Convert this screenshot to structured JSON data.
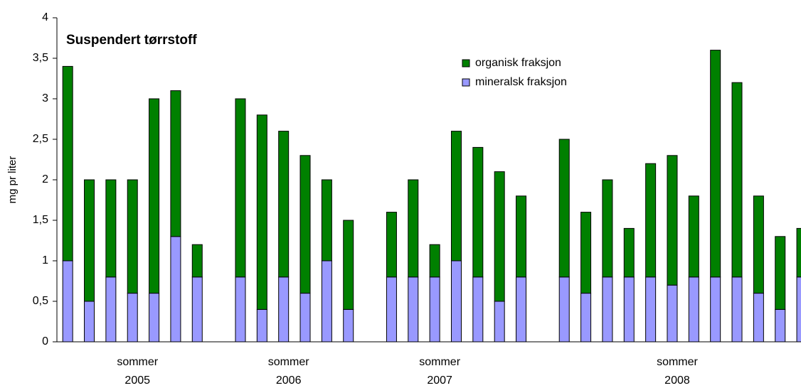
{
  "chart_data": {
    "type": "stacked_bar",
    "title": "Suspendert tørrstoff",
    "y_label": "mg pr liter",
    "categories": [
      null,
      null,
      null,
      [
        "sommer",
        "2005"
      ],
      null,
      null,
      null,
      null,
      null,
      null,
      [
        "sommer",
        "2006"
      ],
      null,
      null,
      null,
      null,
      null,
      null,
      [
        "sommer",
        "2007"
      ],
      null,
      null,
      null,
      null,
      null,
      null,
      null,
      null,
      null,
      null,
      [
        "sommer",
        "2008"
      ],
      null,
      null,
      null,
      null,
      null,
      null
    ],
    "series": [
      {
        "name": "mineralsk fraksjon",
        "color": "#9999ff",
        "values": [
          1.0,
          0.5,
          0.8,
          0.6,
          0.6,
          1.3,
          0.8,
          null,
          0.8,
          0.4,
          0.8,
          0.6,
          1.0,
          0.4,
          null,
          0.8,
          0.8,
          0.8,
          1.0,
          0.8,
          0.5,
          0.8,
          null,
          0.8,
          0.6,
          0.8,
          0.8,
          0.8,
          0.7,
          0.8,
          0.8,
          0.8,
          0.6,
          0.4,
          0.8
        ]
      },
      {
        "name": "organisk fraksjon",
        "color": "#008000",
        "values": [
          2.4,
          1.5,
          1.2,
          1.4,
          2.4,
          1.8,
          0.4,
          null,
          2.2,
          2.4,
          1.8,
          1.7,
          1.0,
          1.1,
          null,
          0.8,
          1.2,
          0.4,
          1.6,
          1.6,
          1.6,
          1.0,
          null,
          1.7,
          1.0,
          1.2,
          0.6,
          1.4,
          1.6,
          1.0,
          2.8,
          2.4,
          1.2,
          0.9,
          0.6
        ]
      }
    ],
    "ylim": [
      0,
      4
    ],
    "yticks": [
      0,
      {
        "value": 0.5,
        "label": "0,5"
      },
      1,
      {
        "value": 1.5,
        "label": "1,5"
      },
      2,
      {
        "value": 2.5,
        "label": "2,5"
      },
      3,
      {
        "value": 3.5,
        "label": "3,5"
      },
      4
    ],
    "legend": "top-right"
  }
}
